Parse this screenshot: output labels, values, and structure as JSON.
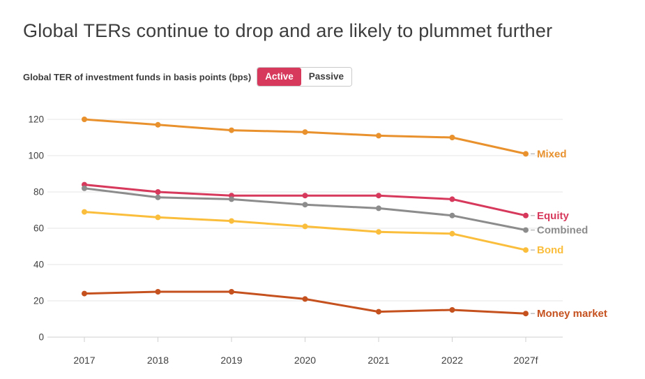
{
  "header": {
    "title": "Global TERs continue to drop and are likely to plummet further"
  },
  "controls": {
    "label": "Global TER of investment funds in basis points (bps)",
    "options": [
      {
        "label": "Active",
        "selected": true,
        "bg": "#D6395C",
        "fg": "#ffffff"
      },
      {
        "label": "Passive",
        "selected": false,
        "bg": "#ffffff",
        "fg": "#3d3d3d"
      }
    ]
  },
  "chart_data": {
    "type": "line",
    "title": "Global TER of investment funds in basis points (bps) — Active",
    "categories": [
      "2017",
      "2018",
      "2019",
      "2020",
      "2021",
      "2022",
      "2027f"
    ],
    "series": [
      {
        "id": "mixed",
        "name": "Mixed",
        "color": "#E8912D",
        "values": [
          120,
          117,
          114,
          113,
          111,
          110,
          101
        ]
      },
      {
        "id": "equity",
        "name": "Equity",
        "color": "#D6395C",
        "values": [
          84,
          80,
          78,
          78,
          78,
          76,
          67
        ]
      },
      {
        "id": "combined",
        "name": "Combined",
        "color": "#8C8C8C",
        "values": [
          82,
          77,
          76,
          73,
          71,
          67,
          59
        ]
      },
      {
        "id": "bond",
        "name": "Bond",
        "color": "#FBBE3C",
        "values": [
          69,
          66,
          64,
          61,
          58,
          57,
          48
        ]
      },
      {
        "id": "money-market",
        "name": "Money market",
        "color": "#C5511F",
        "values": [
          24,
          25,
          25,
          21,
          14,
          15,
          13
        ]
      }
    ],
    "xlabel": "",
    "ylabel": "",
    "ylim": [
      0,
      120
    ],
    "yticks": [
      0,
      20,
      40,
      60,
      80,
      100,
      120
    ],
    "grid": true,
    "legend_position": "right-of-line-end"
  }
}
